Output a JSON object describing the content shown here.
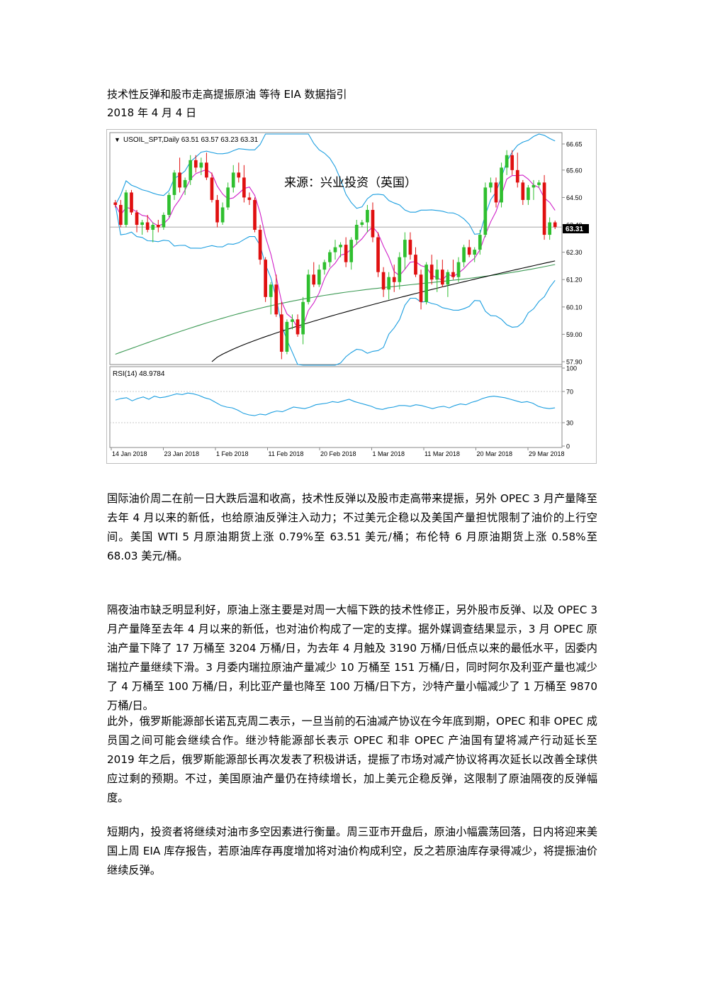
{
  "article": {
    "title": "技术性反弹和股市走高提振原油  等待 EIA 数据指引",
    "date": "2018 年 4 月 4 日"
  },
  "chart_data": {
    "type": "candlestick",
    "symbol_header": "USOIL_SPT,Daily  63.51 63.57 63.23 63.31",
    "watermark": "来源：兴业投资（英国）",
    "price_axis": {
      "ticks": [
        "66.65",
        "65.60",
        "64.50",
        "63.40",
        "62.30",
        "61.20",
        "60.10",
        "59.00",
        "57.90"
      ],
      "range": [
        57.9,
        66.65
      ]
    },
    "last_price_label": "63.31",
    "x_labels": [
      "14 Jan 2018",
      "23 Jan 2018",
      "1 Feb 2018",
      "11 Feb 2018",
      "20 Feb 2018",
      "1 Mar 2018",
      "11 Mar 2018",
      "20 Mar 2018",
      "29 Mar 2018"
    ],
    "candles": [
      [
        64.3,
        64.4,
        64.1,
        64.2
      ],
      [
        64.2,
        64.4,
        63.3,
        63.4
      ],
      [
        63.4,
        64.8,
        63.3,
        64.7
      ],
      [
        64.7,
        64.8,
        63.8,
        63.9
      ],
      [
        63.9,
        64.0,
        63.1,
        63.4
      ],
      [
        63.4,
        63.6,
        63.0,
        63.5
      ],
      [
        63.5,
        63.8,
        63.1,
        63.2
      ],
      [
        63.2,
        63.5,
        62.7,
        63.4
      ],
      [
        63.4,
        63.6,
        63.1,
        63.3
      ],
      [
        63.3,
        63.9,
        63.2,
        63.8
      ],
      [
        63.8,
        64.7,
        63.7,
        64.6
      ],
      [
        64.6,
        65.6,
        64.4,
        65.5
      ],
      [
        65.5,
        66.1,
        64.7,
        64.9
      ],
      [
        64.9,
        65.3,
        64.6,
        65.2
      ],
      [
        65.2,
        66.2,
        65.0,
        66.0
      ],
      [
        66.0,
        66.2,
        65.5,
        65.7
      ],
      [
        65.7,
        66.1,
        65.4,
        65.9
      ],
      [
        65.9,
        66.3,
        65.2,
        65.3
      ],
      [
        65.3,
        65.5,
        64.3,
        64.4
      ],
      [
        64.4,
        64.6,
        63.3,
        63.5
      ],
      [
        63.5,
        64.3,
        63.4,
        64.1
      ],
      [
        64.1,
        65.1,
        64.0,
        64.9
      ],
      [
        64.9,
        65.8,
        64.7,
        65.5
      ],
      [
        65.5,
        65.9,
        65.1,
        65.3
      ],
      [
        65.3,
        65.8,
        64.3,
        64.5
      ],
      [
        64.5,
        64.7,
        64.2,
        64.4
      ],
      [
        64.4,
        64.5,
        63.1,
        63.2
      ],
      [
        63.2,
        63.4,
        61.8,
        62.0
      ],
      [
        62.0,
        62.1,
        60.3,
        60.5
      ],
      [
        60.5,
        61.1,
        59.8,
        61.0
      ],
      [
        61.0,
        61.4,
        59.7,
        59.8
      ],
      [
        59.8,
        60.3,
        58.0,
        58.3
      ],
      [
        58.3,
        59.6,
        58.2,
        59.5
      ],
      [
        59.5,
        59.8,
        59.2,
        59.6
      ],
      [
        59.6,
        59.8,
        58.9,
        59.0
      ],
      [
        59.0,
        60.5,
        58.6,
        60.3
      ],
      [
        60.3,
        61.6,
        60.2,
        61.4
      ],
      [
        61.4,
        61.9,
        60.9,
        61.0
      ],
      [
        61.0,
        61.8,
        60.9,
        61.6
      ],
      [
        61.6,
        62.0,
        61.4,
        61.9
      ],
      [
        61.9,
        62.4,
        61.7,
        62.3
      ],
      [
        62.3,
        62.8,
        62.0,
        62.5
      ],
      [
        62.5,
        62.7,
        62.1,
        62.6
      ],
      [
        62.6,
        62.9,
        61.7,
        61.9
      ],
      [
        61.9,
        62.9,
        61.6,
        62.8
      ],
      [
        62.8,
        63.6,
        62.6,
        63.4
      ],
      [
        63.4,
        63.6,
        63.3,
        63.5
      ],
      [
        63.5,
        64.2,
        63.1,
        64.0
      ],
      [
        64.0,
        64.3,
        62.7,
        62.9
      ],
      [
        62.9,
        63.1,
        61.3,
        61.5
      ],
      [
        61.5,
        61.7,
        60.5,
        60.8
      ],
      [
        60.8,
        61.5,
        60.4,
        61.3
      ],
      [
        61.3,
        61.8,
        60.7,
        61.1
      ],
      [
        61.1,
        62.3,
        60.8,
        62.1
      ],
      [
        62.1,
        63.1,
        61.6,
        62.8
      ],
      [
        62.8,
        63.1,
        62.0,
        62.2
      ],
      [
        62.2,
        62.5,
        61.3,
        61.4
      ],
      [
        61.4,
        61.6,
        60.0,
        60.3
      ],
      [
        60.3,
        61.9,
        60.2,
        61.8
      ],
      [
        61.8,
        62.2,
        61.0,
        61.2
      ],
      [
        61.2,
        62.0,
        60.7,
        61.6
      ],
      [
        61.6,
        62.0,
        60.9,
        61.0
      ],
      [
        61.0,
        61.6,
        60.5,
        61.5
      ],
      [
        61.5,
        62.0,
        61.2,
        61.3
      ],
      [
        61.3,
        62.1,
        61.1,
        61.9
      ],
      [
        61.9,
        62.6,
        61.7,
        62.5
      ],
      [
        62.5,
        62.8,
        62.1,
        62.2
      ],
      [
        62.2,
        62.5,
        61.9,
        62.4
      ],
      [
        62.4,
        63.2,
        62.2,
        63.0
      ],
      [
        63.0,
        65.1,
        62.9,
        64.9
      ],
      [
        64.9,
        65.3,
        64.7,
        65.1
      ],
      [
        65.1,
        65.3,
        64.1,
        64.3
      ],
      [
        64.3,
        65.9,
        64.1,
        65.7
      ],
      [
        65.7,
        66.4,
        65.4,
        66.2
      ],
      [
        66.2,
        66.4,
        65.4,
        65.6
      ],
      [
        65.6,
        66.3,
        64.9,
        65.1
      ],
      [
        65.1,
        65.2,
        64.2,
        64.4
      ],
      [
        64.4,
        65.0,
        64.2,
        64.9
      ],
      [
        64.9,
        65.2,
        64.4,
        65.0
      ],
      [
        65.0,
        65.2,
        64.9,
        65.1
      ],
      [
        65.1,
        65.4,
        62.8,
        63.0
      ],
      [
        63.0,
        63.7,
        62.8,
        63.5
      ],
      [
        63.5,
        63.57,
        63.23,
        63.31
      ]
    ],
    "rsi_label": "RSI(14) 48.9784",
    "rsi_axis": [
      "100",
      "70",
      "30",
      "0"
    ],
    "rsi_values": [
      59,
      61,
      62,
      58,
      61,
      63,
      60,
      64,
      62,
      63,
      65,
      67,
      66,
      68,
      67,
      65,
      62,
      60,
      56,
      52,
      50,
      49,
      46,
      42,
      40,
      39,
      41,
      40,
      43,
      45,
      44,
      47,
      50,
      49,
      48,
      50,
      53,
      54,
      55,
      57,
      56,
      58,
      60,
      57,
      55,
      53,
      51,
      48,
      47,
      49,
      50,
      52,
      52,
      51,
      53,
      52,
      50,
      48,
      50,
      51,
      49,
      52,
      54,
      53,
      56,
      58,
      61,
      63,
      64,
      63,
      62,
      60,
      58,
      56,
      57,
      55,
      51,
      49,
      48,
      49
    ],
    "colors": {
      "bull": "#2fbf2f",
      "bear": "#e01010",
      "bollinger": "#1b9ee0",
      "ma_fast": "#d020c8",
      "ma_mid": "#3d9a55",
      "ma_slow": "#000000",
      "rsi": "#1b9ee0"
    }
  },
  "paragraphs": [
    "国际油价周二在前一日大跌后温和收高，技术性反弹以及股市走高带来提振，另外 OPEC 3 月产量降至去年 4 月以来的新低，也给原油反弹注入动力；不过美元企稳以及美国产量担忧限制了油价的上行空间。美国 WTI 5 月原油期货上涨 0.79%至 63.51 美元/桶；布伦特 6 月原油期货上涨 0.58%至 68.03 美元/桶。",
    "隔夜油市缺乏明显利好，原油上涨主要是对周一大幅下跌的技术性修正，另外股市反弹、以及 OPEC 3 月产量降至去年 4 月以来的新低，也对油价构成了一定的支撑。据外媒调查结果显示，3 月 OPEC 原油产量下降了 17 万桶至 3204 万桶/日，为去年 4 月触及 3190 万桶/日低点以来的最低水平，因委内瑞拉产量继续下滑。3 月委内瑞拉原油产量减少 10 万桶至 151 万桶/日，同时阿尔及利亚产量也减少了 4 万桶至 100 万桶/日，利比亚产量也降至 100 万桶/日下方，沙特产量小幅减少了 1 万桶至 9870 万桶/日。",
    "此外，俄罗斯能源部长诺瓦克周二表示，一旦当前的石油减产协议在今年底到期，OPEC 和非 OPEC 成员国之间可能会继续合作。继沙特能源部长表示 OPEC 和非 OPEC 产油国有望将减产行动延长至 2019 年之后，俄罗斯能源部长再次发表了积极讲话，提振了市场对减产协议将再次延长以改善全球供应过剩的预期。不过，美国原油产量仍在持续增长，加上美元企稳反弹，这限制了原油隔夜的反弹幅度。",
    "短期内，投资者将继续对油市多空因素进行衡量。周三亚市开盘后，原油小幅震荡回落，日内将迎来美国上周 EIA 库存报告，若原油库存再度增加将对油价构成利空，反之若原油库存录得减少，将提振油价继续反弹。"
  ]
}
